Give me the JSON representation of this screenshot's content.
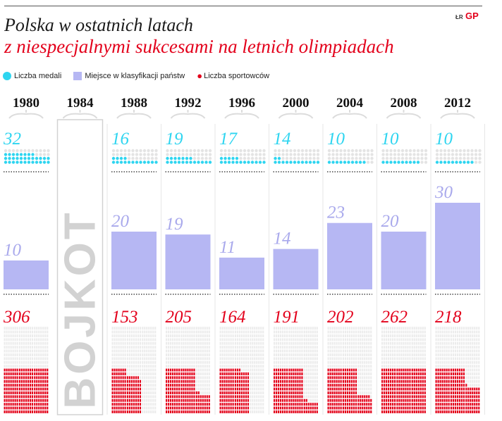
{
  "header": {
    "title_line1": "Polska w ostatnich latach",
    "title_line2": "z niespecjalnymi sukcesami na letnich olimpiadach",
    "credit": "ŁR",
    "brand": "GP"
  },
  "legend": {
    "medals": "Liczba medali",
    "rank": "Miejsce w klasyfikacji państw",
    "athletes": "Liczba sportowców"
  },
  "boycott_label": "BOJKOT",
  "colors": {
    "medals": "#2ed5f0",
    "rank": "#b6b7f3",
    "athletes": "#e3001b",
    "inactive": "#d2d2d2",
    "divider": "#222222",
    "year": "#111111"
  },
  "chart_data": {
    "type": "bar",
    "categories": [
      "1980",
      "1984",
      "1988",
      "1992",
      "1996",
      "2000",
      "2004",
      "2008",
      "2012"
    ],
    "boycott_year": "1984",
    "series": [
      {
        "name": "Liczba medali",
        "values": [
          32,
          null,
          16,
          19,
          17,
          14,
          10,
          10,
          10
        ]
      },
      {
        "name": "Miejsce w klasyfikacji państw",
        "values": [
          10,
          null,
          20,
          19,
          11,
          14,
          23,
          20,
          30
        ]
      },
      {
        "name": "Liczba sportowców",
        "values": [
          306,
          null,
          153,
          205,
          164,
          191,
          202,
          262,
          218
        ]
      }
    ]
  }
}
